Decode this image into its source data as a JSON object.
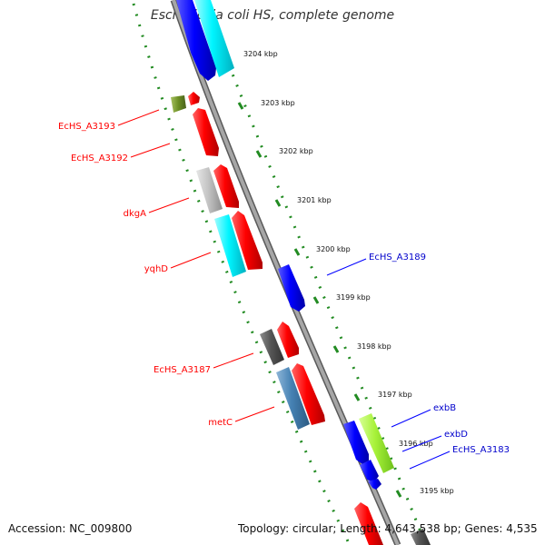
{
  "title": "Escherichia coli HS, complete genome",
  "footer": {
    "accession": "Accession: NC_009800",
    "summary": "Topology: circular; Length: 4,643,538 bp; Genes: 4,535"
  },
  "ticks": [
    "3204 kbp",
    "3203 kbp",
    "3202 kbp",
    "3201 kbp",
    "3200 kbp",
    "3199 kbp",
    "3198 kbp",
    "3197 kbp",
    "3196 kbp",
    "3195 kbp"
  ],
  "labels": {
    "EcHS_A3193": "EcHS_A3193",
    "EcHS_A3192": "EcHS_A3192",
    "dkgA": "dkgA",
    "yqhD": "yqhD",
    "EcHS_A3187": "EcHS_A3187",
    "metC": "metC",
    "EcHS_A3189": "EcHS_A3189",
    "exbB": "exbB",
    "exbD": "exbD",
    "EcHS_A3183": "EcHS_A3183"
  },
  "colors": {
    "forward_red": "#ff0000",
    "reverse_blue": "#0000ff",
    "cyan": "#00ffff",
    "steel": "#4682b4",
    "olive": "#6b8e23",
    "lime": "#a8f23a",
    "gray": "#bebebe",
    "dark_gray": "#555555",
    "tick_green": "#228b22",
    "backbone": "#8c8c8c"
  }
}
